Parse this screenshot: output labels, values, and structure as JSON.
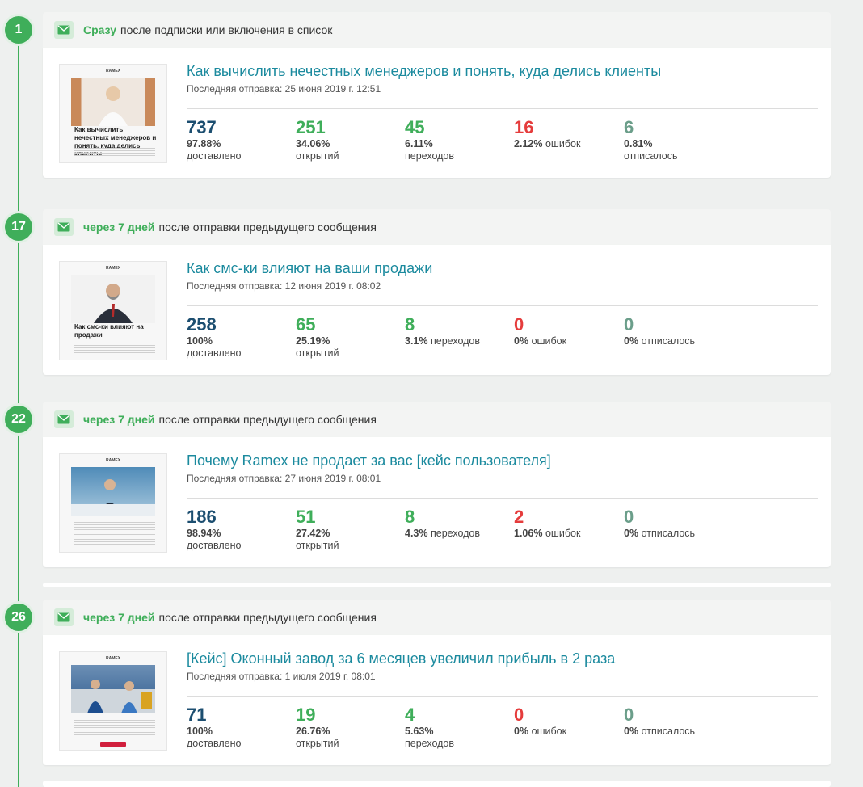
{
  "steps": [
    {
      "number": "1",
      "delay": "Сразу",
      "trigger": "после подписки или включения в список",
      "title": "Как вычислить нечестных менеджеров и понять, куда делись клиенты",
      "last_sent": "Последняя отправка: 25 июня 2019 г. 12:51",
      "thumb_heading": "Как вычислить нечестных менеджеров и понять, куда делись клиенты",
      "delivered": {
        "value": "737",
        "pct": "97.88%",
        "label": "доставлено"
      },
      "opened": {
        "value": "251",
        "pct": "34.06%",
        "label": "открытий"
      },
      "clicks": {
        "value": "45",
        "pct": "6.11%",
        "label": "переходов"
      },
      "errors": {
        "value": "16",
        "pct": "2.12%",
        "label": "ошибок"
      },
      "unsubscribed": {
        "value": "6",
        "pct": "0.81%",
        "label": "отписалось"
      }
    },
    {
      "number": "17",
      "delay": "через 7 дней",
      "trigger": "после отправки предыдущего сообщения",
      "title": "Как смс-ки влияют на ваши продажи",
      "last_sent": "Последняя отправка: 12 июня 2019 г. 08:02",
      "thumb_heading": "Как смс-ки влияют на продажи",
      "delivered": {
        "value": "258",
        "pct": "100%",
        "label": "доставлено"
      },
      "opened": {
        "value": "65",
        "pct": "25.19%",
        "label": "открытий"
      },
      "clicks": {
        "value": "8",
        "pct": "3.1%",
        "label": "переходов"
      },
      "errors": {
        "value": "0",
        "pct": "0%",
        "label": "ошибок"
      },
      "unsubscribed": {
        "value": "0",
        "pct": "0%",
        "label": "отписалось"
      }
    },
    {
      "number": "22",
      "delay": "через 7 дней",
      "trigger": "после отправки предыдущего сообщения",
      "title": "Почему Ramex не продает за вас [кейс пользователя]",
      "last_sent": "Последняя отправка: 27 июня 2019 г. 08:01",
      "thumb_heading": "",
      "delivered": {
        "value": "186",
        "pct": "98.94%",
        "label": "доставлено"
      },
      "opened": {
        "value": "51",
        "pct": "27.42%",
        "label": "открытий"
      },
      "clicks": {
        "value": "8",
        "pct": "4.3%",
        "label": "переходов"
      },
      "errors": {
        "value": "2",
        "pct": "1.06%",
        "label": "ошибок"
      },
      "unsubscribed": {
        "value": "0",
        "pct": "0%",
        "label": "отписалось"
      }
    },
    {
      "number": "26",
      "delay": "через 7 дней",
      "trigger": "после отправки предыдущего сообщения",
      "title": "[Кейс] Оконный завод за 6 месяцев увеличил прибыль в 2 раза",
      "last_sent": "Последняя отправка: 1 июля 2019 г. 08:01",
      "thumb_heading": "",
      "delivered": {
        "value": "71",
        "pct": "100%",
        "label": "доставлено"
      },
      "opened": {
        "value": "19",
        "pct": "26.76%",
        "label": "открытий"
      },
      "clicks": {
        "value": "4",
        "pct": "5.63%",
        "label": "переходов"
      },
      "errors": {
        "value": "0",
        "pct": "0%",
        "label": "ошибок"
      },
      "unsubscribed": {
        "value": "0",
        "pct": "0%",
        "label": "отписалось"
      }
    }
  ],
  "icons": {
    "step_icon": "envelope-icon"
  },
  "colors": {
    "accent": "#3fae5a",
    "delivered": "#1c4e70",
    "errors": "#e53c3c",
    "unsubscribed": "#6b9e8a",
    "title_link": "#1b8a9e"
  }
}
